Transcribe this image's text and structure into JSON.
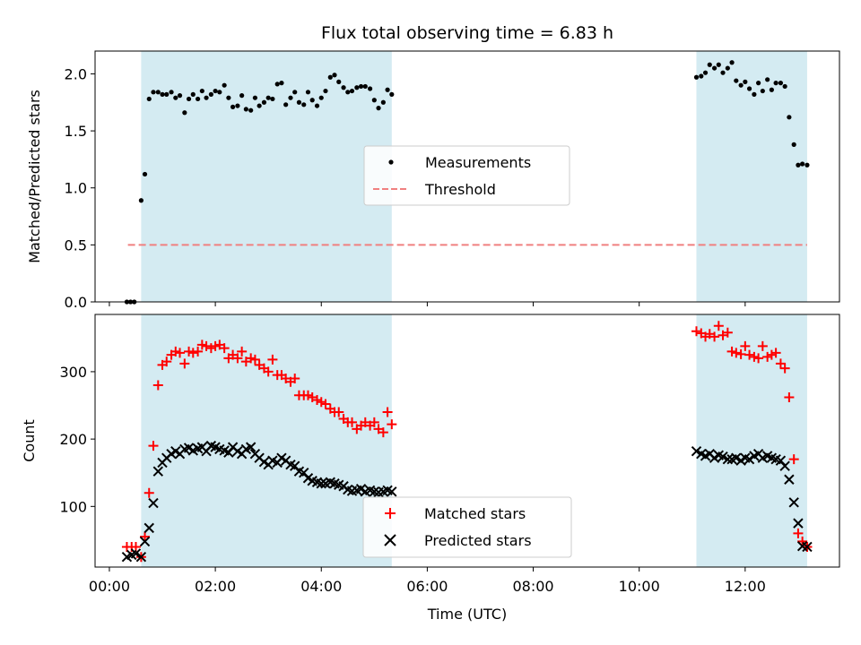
{
  "chart_data": {
    "type": "scatter",
    "title": "Flux total observing time = 6.83 h",
    "xlabel": "Time (UTC)",
    "x_units": "hours since 00:00 UTC",
    "xlim": [
      -0.27,
      13.78
    ],
    "x_ticks": [
      {
        "value": 0,
        "label": "00:00"
      },
      {
        "value": 2,
        "label": "02:00"
      },
      {
        "value": 4,
        "label": "04:00"
      },
      {
        "value": 6,
        "label": "06:00"
      },
      {
        "value": 8,
        "label": "08:00"
      },
      {
        "value": 10,
        "label": "10:00"
      },
      {
        "value": 12,
        "label": "12:00"
      }
    ],
    "shaded_intervals": [
      [
        0.6,
        5.33
      ],
      [
        11.08,
        13.17
      ]
    ],
    "shade_color": "#add8e6",
    "panels": [
      {
        "id": "ratio",
        "ylabel": "Matched/Predicted stars",
        "ylim": [
          0,
          2.2
        ],
        "y_ticks": [
          {
            "value": 0.0,
            "label": "0.0"
          },
          {
            "value": 0.5,
            "label": "0.5"
          },
          {
            "value": 1.0,
            "label": "1.0"
          },
          {
            "value": 1.5,
            "label": "1.5"
          },
          {
            "value": 2.0,
            "label": "2.0"
          }
        ],
        "legend": {
          "position": "center",
          "entries": [
            "Measurements",
            "Threshold"
          ]
        },
        "threshold": {
          "name": "Threshold",
          "y": 0.5,
          "x_range": [
            0.35,
            13.17
          ],
          "color": "#f08080"
        },
        "series": [
          {
            "name": "Measurements",
            "marker": "dot",
            "color": "#000000",
            "x": [
              0.33,
              0.4,
              0.47,
              0.6,
              0.67,
              0.75,
              0.83,
              0.92,
              1.0,
              1.08,
              1.17,
              1.25,
              1.33,
              1.42,
              1.5,
              1.58,
              1.67,
              1.75,
              1.83,
              1.92,
              2.0,
              2.08,
              2.17,
              2.25,
              2.33,
              2.42,
              2.5,
              2.58,
              2.67,
              2.75,
              2.83,
              2.92,
              3.0,
              3.08,
              3.17,
              3.25,
              3.33,
              3.42,
              3.5,
              3.58,
              3.67,
              3.75,
              3.83,
              3.92,
              4.0,
              4.08,
              4.17,
              4.25,
              4.33,
              4.42,
              4.5,
              4.58,
              4.67,
              4.75,
              4.83,
              4.92,
              5.0,
              5.08,
              5.17,
              5.25,
              5.33,
              11.08,
              11.17,
              11.25,
              11.33,
              11.42,
              11.5,
              11.58,
              11.67,
              11.75,
              11.83,
              11.92,
              12.0,
              12.08,
              12.17,
              12.25,
              12.33,
              12.42,
              12.5,
              12.58,
              12.67,
              12.75,
              12.83,
              12.92,
              13.0,
              13.08,
              13.17
            ],
            "y": [
              0.0,
              0.0,
              0.0,
              0.89,
              1.12,
              1.78,
              1.84,
              1.84,
              1.82,
              1.82,
              1.84,
              1.79,
              1.81,
              1.66,
              1.78,
              1.82,
              1.78,
              1.85,
              1.79,
              1.82,
              1.85,
              1.84,
              1.9,
              1.79,
              1.71,
              1.72,
              1.81,
              1.69,
              1.68,
              1.79,
              1.72,
              1.75,
              1.79,
              1.78,
              1.91,
              1.92,
              1.73,
              1.79,
              1.84,
              1.75,
              1.73,
              1.84,
              1.77,
              1.72,
              1.79,
              1.85,
              1.97,
              1.99,
              1.93,
              1.88,
              1.84,
              1.85,
              1.88,
              1.89,
              1.89,
              1.87,
              1.77,
              1.7,
              1.75,
              1.86,
              1.82,
              1.97,
              1.98,
              2.01,
              2.08,
              2.05,
              2.08,
              2.01,
              2.05,
              2.1,
              1.94,
              1.9,
              1.93,
              1.87,
              1.82,
              1.92,
              1.85,
              1.95,
              1.86,
              1.92,
              1.92,
              1.89,
              1.62,
              1.38,
              1.2,
              1.21,
              1.2
            ]
          }
        ]
      },
      {
        "id": "count",
        "ylabel": "Count",
        "ylim": [
          10,
          385
        ],
        "y_ticks": [
          {
            "value": 100,
            "label": "100"
          },
          {
            "value": 200,
            "label": "200"
          },
          {
            "value": 300,
            "label": "300"
          }
        ],
        "legend": {
          "position": "lower center",
          "entries": [
            "Matched stars",
            "Predicted stars"
          ]
        },
        "series": [
          {
            "name": "Matched stars",
            "marker": "plus",
            "color": "#ff0000",
            "x": [
              0.33,
              0.42,
              0.5,
              0.6,
              0.67,
              0.75,
              0.83,
              0.92,
              1.0,
              1.08,
              1.17,
              1.25,
              1.33,
              1.42,
              1.5,
              1.58,
              1.67,
              1.75,
              1.83,
              1.92,
              2.0,
              2.08,
              2.17,
              2.25,
              2.33,
              2.42,
              2.5,
              2.58,
              2.67,
              2.75,
              2.83,
              2.92,
              3.0,
              3.08,
              3.17,
              3.25,
              3.33,
              3.42,
              3.5,
              3.58,
              3.67,
              3.75,
              3.83,
              3.92,
              4.0,
              4.08,
              4.17,
              4.25,
              4.33,
              4.42,
              4.5,
              4.58,
              4.67,
              4.75,
              4.83,
              4.92,
              5.0,
              5.08,
              5.17,
              5.25,
              5.33,
              11.08,
              11.17,
              11.25,
              11.33,
              11.42,
              11.5,
              11.58,
              11.67,
              11.75,
              11.83,
              11.92,
              12.0,
              12.08,
              12.17,
              12.25,
              12.33,
              12.42,
              12.5,
              12.58,
              12.67,
              12.75,
              12.83,
              12.92,
              13.0,
              13.08,
              13.17
            ],
            "y": [
              40,
              40,
              40,
              25,
              55,
              120,
              190,
              280,
              310,
              315,
              325,
              330,
              328,
              312,
              330,
              328,
              330,
              340,
              338,
              335,
              338,
              340,
              335,
              320,
              325,
              320,
              330,
              315,
              320,
              318,
              310,
              305,
              300,
              318,
              295,
              295,
              290,
              285,
              290,
              265,
              265,
              265,
              262,
              258,
              255,
              252,
              245,
              240,
              240,
              230,
              225,
              225,
              215,
              220,
              225,
              220,
              225,
              215,
              210,
              240,
              222,
              360,
              357,
              352,
              356,
              352,
              368,
              354,
              358,
              330,
              328,
              326,
              338,
              325,
              322,
              320,
              338,
              322,
              325,
              328,
              312,
              305,
              262,
              170,
              60,
              48,
              40
            ]
          },
          {
            "name": "Predicted stars",
            "marker": "x",
            "color": "#000000",
            "x": [
              0.33,
              0.42,
              0.5,
              0.6,
              0.67,
              0.75,
              0.83,
              0.92,
              1.0,
              1.08,
              1.17,
              1.25,
              1.33,
              1.42,
              1.5,
              1.58,
              1.67,
              1.75,
              1.83,
              1.92,
              2.0,
              2.08,
              2.17,
              2.25,
              2.33,
              2.42,
              2.5,
              2.58,
              2.67,
              2.75,
              2.83,
              2.92,
              3.0,
              3.08,
              3.17,
              3.25,
              3.33,
              3.42,
              3.5,
              3.58,
              3.67,
              3.75,
              3.83,
              3.92,
              4.0,
              4.08,
              4.17,
              4.25,
              4.33,
              4.42,
              4.5,
              4.58,
              4.67,
              4.75,
              4.83,
              4.92,
              5.0,
              5.08,
              5.17,
              5.25,
              5.33,
              11.08,
              11.17,
              11.25,
              11.33,
              11.42,
              11.5,
              11.58,
              11.67,
              11.75,
              11.83,
              11.92,
              12.0,
              12.08,
              12.17,
              12.25,
              12.33,
              12.42,
              12.5,
              12.58,
              12.67,
              12.75,
              12.83,
              12.92,
              13.0,
              13.08,
              13.17
            ],
            "y": [
              25,
              28,
              30,
              25,
              48,
              68,
              105,
              152,
              165,
              172,
              178,
              182,
              178,
              185,
              187,
              183,
              186,
              188,
              182,
              190,
              188,
              185,
              183,
              180,
              188,
              182,
              178,
              185,
              188,
              178,
              172,
              166,
              162,
              168,
              165,
              172,
              168,
              162,
              160,
              152,
              150,
              142,
              138,
              136,
              134,
              134,
              136,
              134,
              132,
              130,
              125,
              123,
              124,
              126,
              122,
              124,
              122,
              121,
              122,
              124,
              122,
              182,
              178,
              175,
              178,
              172,
              176,
              174,
              170,
              170,
              172,
              168,
              172,
              170,
              175,
              178,
              172,
              175,
              172,
              170,
              168,
              160,
              140,
              106,
              75,
              41,
              40
            ]
          }
        ]
      }
    ]
  }
}
